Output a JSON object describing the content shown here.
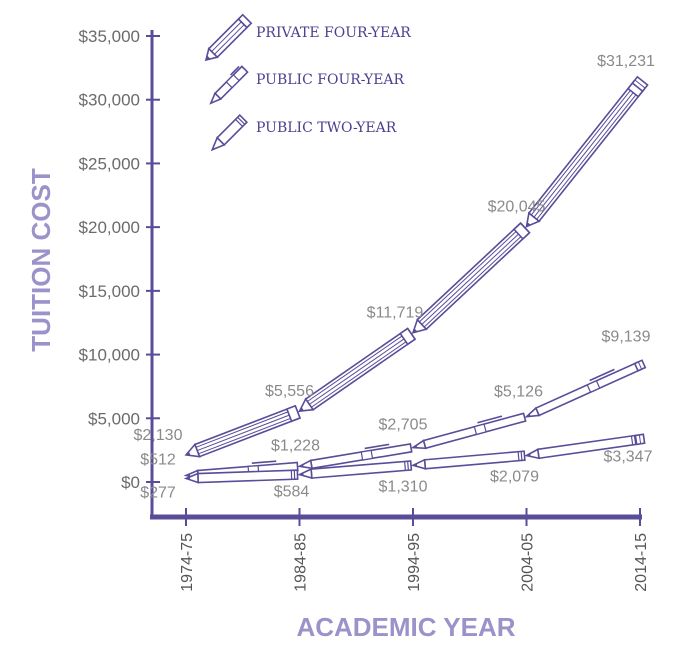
{
  "colors": {
    "accent": "#5a4c99",
    "axis_title": "#9b92c9",
    "label": "#8a8a8a"
  },
  "chart_data": {
    "type": "line",
    "title": "",
    "xlabel": "ACADEMIC YEAR",
    "ylabel": "TUITION COST",
    "categories": [
      "1974-75",
      "1984-85",
      "1994-95",
      "2004-05",
      "2014-15"
    ],
    "y_ticks": [
      "$0",
      "$5,000",
      "$10,000",
      "$15,000",
      "$20,000",
      "$25,000",
      "$30,000",
      "$35,000"
    ],
    "ylim": [
      0,
      35000
    ],
    "grid": false,
    "legend_position": "top-left",
    "series": [
      {
        "name": "PRIVATE FOUR-YEAR",
        "icon": "thick-pencil-icon",
        "values": [
          2130,
          5556,
          11719,
          20045,
          31231
        ],
        "labels": [
          "$2,130",
          "$5,556",
          "$11,719",
          "$20,045",
          "$31,231"
        ]
      },
      {
        "name": "PUBLIC FOUR-YEAR",
        "icon": "pen-icon",
        "values": [
          512,
          1228,
          2705,
          5126,
          9139
        ],
        "labels": [
          "$512",
          "$1,228",
          "$2,705",
          "$5,126",
          "$9,139"
        ]
      },
      {
        "name": "PUBLIC TWO-YEAR",
        "icon": "marker-icon",
        "values": [
          277,
          584,
          1310,
          2079,
          3347
        ],
        "labels": [
          "$277",
          "$584",
          "$1,310",
          "$2,079",
          "$3,347"
        ]
      }
    ]
  }
}
